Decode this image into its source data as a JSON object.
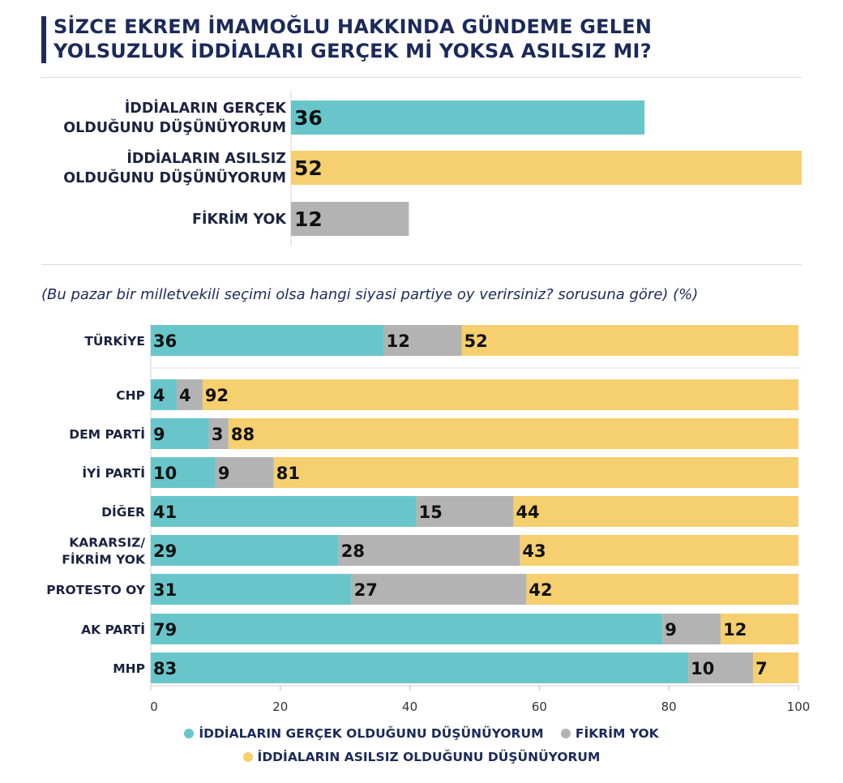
{
  "title": "SİZCE EKREM İMAMOĞLU HAKKINDA GÜNDEME GELEN YOLSUZLUK İDDİALARI GERÇEK Mİ YOKSA ASILSIZ MI?",
  "subtitle": "(Bu pazar bir milletvekili seçimi olsa hangi siyasi partiye oy verirsiniz? sorusuna göre) (%)",
  "colors": {
    "real": "#68c6cb",
    "none": "#b3b3b3",
    "fake": "#f6cf6e"
  },
  "chart_data": [
    {
      "type": "bar",
      "orientation": "horizontal",
      "title": "SİZCE EKREM İMAMOĞLU HAKKINDA GÜNDEME GELEN YOLSUZLUK İDDİALARI GERÇEK Mİ YOKSA ASILSIZ MI?",
      "categories": [
        [
          "İDDİALARIN GERÇEK",
          "OLDUĞUNU DÜŞÜNÜYORUM"
        ],
        [
          "İDDİALARIN ASILSIZ",
          "OLDUĞUNU DÜŞÜNÜYORUM"
        ],
        [
          "FİKRİM YOK"
        ]
      ],
      "values": [
        36,
        52,
        12
      ],
      "bar_colors": [
        "real",
        "fake",
        "none"
      ],
      "xlim": [
        0,
        52
      ]
    },
    {
      "type": "bar",
      "orientation": "horizontal",
      "stacked": true,
      "title": "(Bu pazar bir milletvekili seçimi olsa hangi siyasi partiye oy verirsiniz? sorusuna göre) (%)",
      "categories": [
        [
          "TÜRKİYE"
        ],
        [
          "CHP"
        ],
        [
          "DEM PARTİ"
        ],
        [
          "İYİ PARTİ"
        ],
        [
          "DİĞER"
        ],
        [
          "KARARSIZ/",
          "FİKRİM YOK"
        ],
        [
          "PROTESTO OY"
        ],
        [
          "AK PARTİ"
        ],
        [
          "MHP"
        ]
      ],
      "series": [
        {
          "name": "İDDİALARIN GERÇEK OLDUĞUNU DÜŞÜNÜYORUM",
          "key": "real",
          "values": [
            36,
            4,
            9,
            10,
            41,
            29,
            31,
            79,
            83
          ]
        },
        {
          "name": "FİKRİM YOK",
          "key": "none",
          "values": [
            12,
            4,
            3,
            9,
            15,
            28,
            27,
            9,
            10
          ]
        },
        {
          "name": "İDDİALARIN ASILSIZ OLDUĞUNU DÜŞÜNÜYORUM",
          "key": "fake",
          "values": [
            52,
            92,
            88,
            81,
            44,
            43,
            42,
            12,
            7
          ]
        }
      ],
      "xlim": [
        0,
        100
      ],
      "xticks": [
        0,
        20,
        40,
        60,
        80,
        100
      ]
    }
  ],
  "legend": [
    {
      "label": "İDDİALARIN GERÇEK OLDUĞUNU DÜŞÜNÜYORUM",
      "key": "real"
    },
    {
      "label": "FİKRİM YOK",
      "key": "none"
    },
    {
      "label": "İDDİALARIN ASILSIZ OLDUĞUNU DÜŞÜNÜYORUM",
      "key": "fake"
    }
  ]
}
